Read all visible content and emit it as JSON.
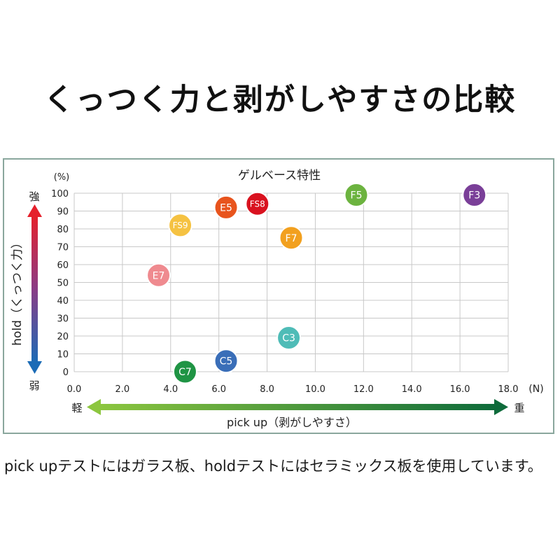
{
  "page": {
    "title": "くっつく力と剥がしやすさの比較",
    "footnote": "pick upテストにはガラス板、holdテストにはセラミックス板を使用しています。"
  },
  "chart_data": {
    "type": "scatter",
    "title": "ゲルベース特性",
    "y_unit": "(%)",
    "x_unit": "(N)",
    "ylabel": "hold（くっつく力）",
    "ylabel_top": "強",
    "ylabel_bottom": "弱",
    "xlabel": "pick up（剥がしやすさ）",
    "xlabel_left": "軽",
    "xlabel_right": "重",
    "xlim": [
      0,
      18
    ],
    "ylim": [
      0,
      100
    ],
    "x_ticks": [
      "0.0",
      "2.0",
      "4.0",
      "6.0",
      "8.0",
      "10.0",
      "12.0",
      "14.0",
      "16.0",
      "18.0"
    ],
    "y_ticks": [
      "0",
      "10",
      "20",
      "30",
      "40",
      "50",
      "60",
      "70",
      "80",
      "90",
      "100"
    ],
    "grid": true,
    "points": [
      {
        "label": "F3",
        "x": 16.6,
        "y": 99,
        "color": "#7a3f98"
      },
      {
        "label": "F5",
        "x": 11.7,
        "y": 99,
        "color": "#6cb33f"
      },
      {
        "label": "FS8",
        "x": 7.6,
        "y": 94,
        "color": "#d9121f"
      },
      {
        "label": "E5",
        "x": 6.3,
        "y": 92,
        "color": "#e8541d"
      },
      {
        "label": "FS9",
        "x": 4.4,
        "y": 82,
        "color": "#f5c242"
      },
      {
        "label": "F7",
        "x": 9.0,
        "y": 75,
        "color": "#f2a01f"
      },
      {
        "label": "E7",
        "x": 3.5,
        "y": 54,
        "color": "#ef8a8f"
      },
      {
        "label": "C3",
        "x": 8.9,
        "y": 19,
        "color": "#4fbcb7"
      },
      {
        "label": "C5",
        "x": 6.3,
        "y": 6,
        "color": "#3a6eb8"
      },
      {
        "label": "C7",
        "x": 4.6,
        "y": 0,
        "color": "#1f9444"
      }
    ],
    "colors": {
      "grid": "#c8c8c8",
      "frame": "#8aa79d",
      "hold_arrow_top": "#e5202b",
      "hold_arrow_bottom": "#1b6bb6",
      "pickup_arrow_left": "#8cc63f",
      "pickup_arrow_right": "#0e6b3b"
    }
  }
}
